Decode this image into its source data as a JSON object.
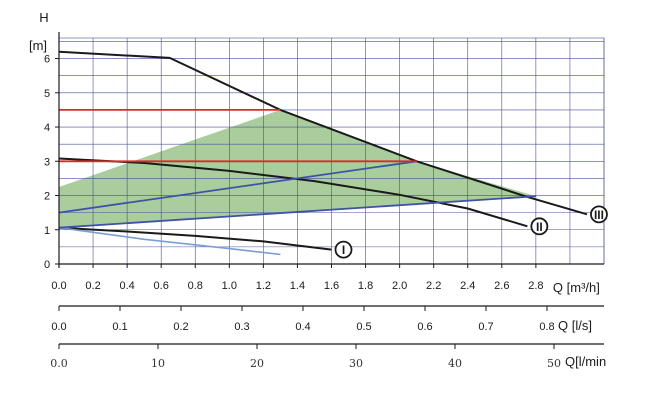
{
  "chart_data": {
    "type": "line",
    "y_axis": {
      "title": "H",
      "unit": "[m]",
      "ticks": [
        "0",
        "1",
        "2",
        "3",
        "4",
        "5",
        "6"
      ],
      "ylim": [
        0,
        6.6
      ]
    },
    "x_axis_flow_m3h": {
      "title": "Q",
      "unit": "[m³/h]",
      "ticks": [
        "0.0",
        "0.2",
        "0.4",
        "0.6",
        "0.8",
        "1.0",
        "1.2",
        "1.4",
        "1.6",
        "1.8",
        "2.0",
        "2.2",
        "2.4",
        "2.6",
        "2.8"
      ],
      "xlim": [
        0,
        3.2
      ]
    },
    "x_axis_flow_ls": {
      "title": "Q",
      "unit": "[l/s]",
      "ticks": [
        "0.0",
        "0.1",
        "0.2",
        "0.3",
        "0.4",
        "0.5",
        "0.6",
        "0.7",
        "0.8"
      ]
    },
    "x_axis_flow_lmin": {
      "title": "Q",
      "unit": "[l/min",
      "ticks": [
        "0.0",
        "10",
        "20",
        "30",
        "40",
        "50"
      ]
    },
    "grid": true,
    "series": [
      {
        "name": "III",
        "color": "#1a1a1a",
        "x": [
          0,
          0.65,
          1.3,
          2.1,
          2.75,
          3.1
        ],
        "y": [
          6.2,
          6.02,
          4.5,
          3.0,
          1.96,
          1.45
        ]
      },
      {
        "name": "II",
        "color": "#1a1a1a",
        "x": [
          0,
          0.5,
          1.0,
          1.5,
          2.0,
          2.4,
          2.75
        ],
        "y": [
          3.08,
          2.95,
          2.72,
          2.42,
          2.02,
          1.62,
          1.1
        ]
      },
      {
        "name": "I",
        "color": "#1a1a1a",
        "x": [
          0,
          0.4,
          0.8,
          1.2,
          1.6
        ],
        "y": [
          1.06,
          0.95,
          0.82,
          0.66,
          0.42
        ]
      },
      {
        "color": "#7a9ed8",
        "x": [
          0,
          0.5,
          1.0,
          1.3
        ],
        "y": [
          1.06,
          0.72,
          0.45,
          0.28
        ]
      },
      {
        "color": "#3f52a8",
        "x": [
          0,
          2.1
        ],
        "y": [
          1.5,
          3.0
        ]
      },
      {
        "color": "#3f52a8",
        "x": [
          0,
          2.8
        ],
        "y": [
          1.06,
          1.98
        ]
      },
      {
        "color": "#e0282a",
        "x": [
          0,
          1.3
        ],
        "y": [
          4.5,
          4.5
        ]
      },
      {
        "color": "#e0282a",
        "x": [
          0,
          2.1
        ],
        "y": [
          3.0,
          3.0
        ]
      }
    ],
    "shaded_region": {
      "color": "#93c083",
      "x": [
        0,
        1.3,
        2.1,
        2.8,
        0
      ],
      "y": [
        2.25,
        4.5,
        3.0,
        1.98,
        1.06
      ]
    }
  }
}
